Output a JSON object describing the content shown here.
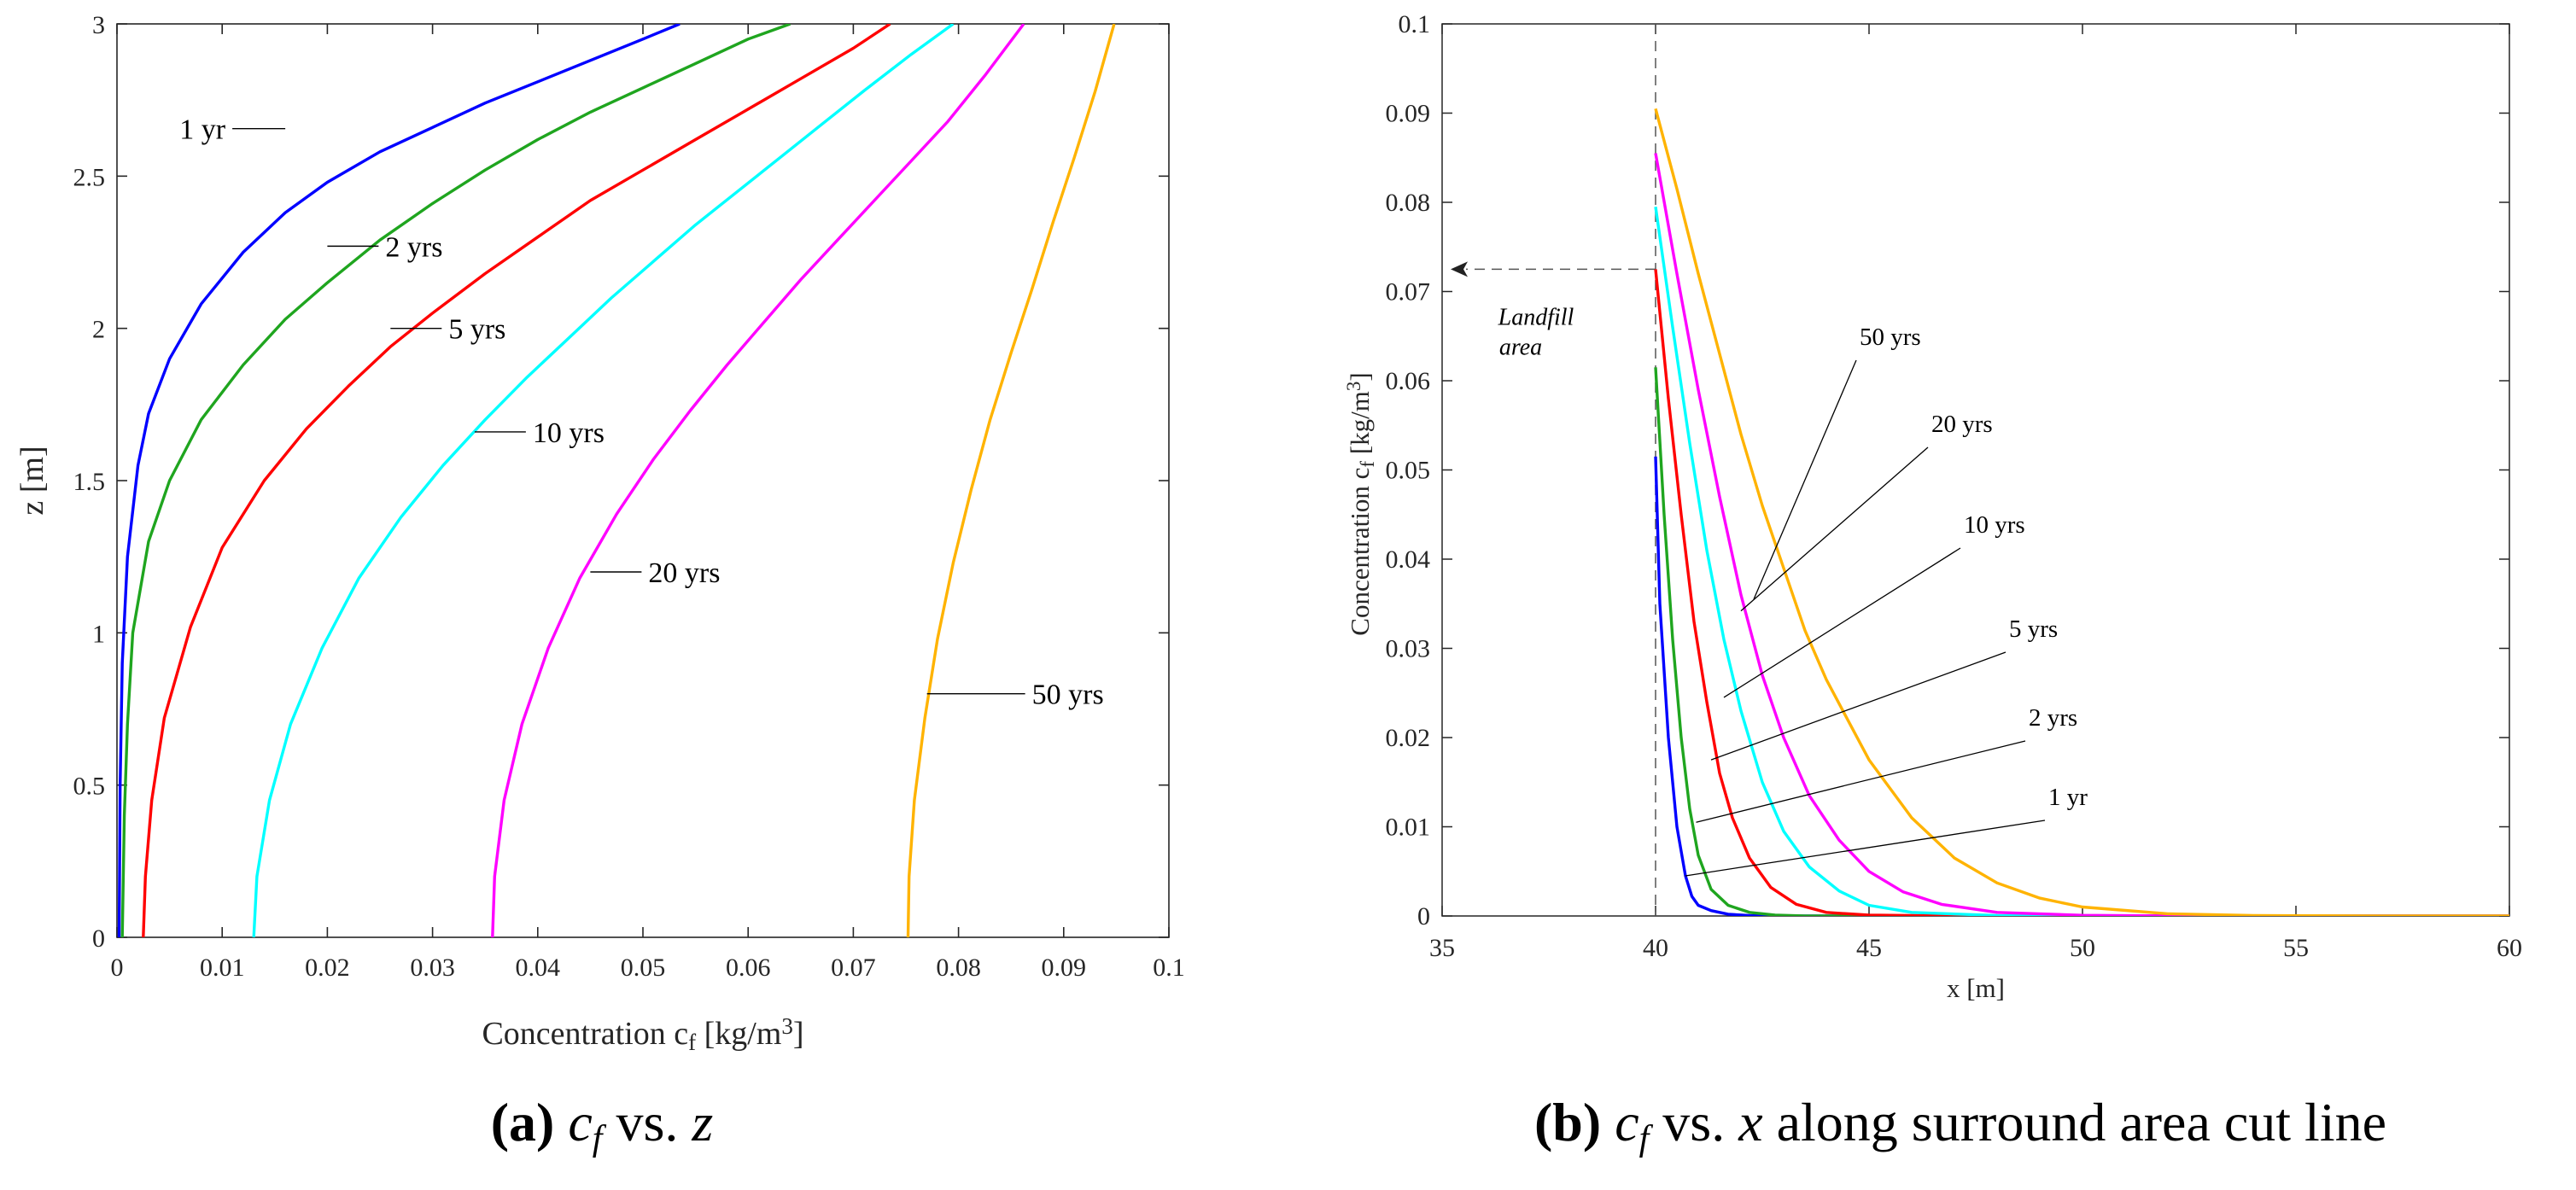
{
  "colors": {
    "1 yr": "#0000ff",
    "2 yrs": "#1fa51f",
    "5 yrs": "#ff0000",
    "10 yrs": "#00ffff",
    "20 yrs": "#ff00ff",
    "50 yrs": "#ffb300"
  },
  "chart_data": [
    {
      "type": "line",
      "panel": "a",
      "caption": {
        "label": "(a)",
        "math1": "c",
        "math1_sub": "f",
        "text": " vs. ",
        "math2": "z"
      },
      "xlabel": "Concentration c",
      "xlabel_sub": "f",
      "xlabel_units": " [kg/m",
      "xlabel_sup": "3",
      "xlabel_close": "]",
      "ylabel": "z [m]",
      "xlim": [
        0,
        0.1
      ],
      "ylim": [
        0,
        3
      ],
      "xticks": [
        0,
        0.01,
        0.02,
        0.03,
        0.04,
        0.05,
        0.06,
        0.07,
        0.08,
        0.09,
        0.1
      ],
      "xtick_labels": [
        "0",
        "0.01",
        "0.02",
        "0.03",
        "0.04",
        "0.05",
        "0.06",
        "0.07",
        "0.08",
        "0.09",
        "0.1"
      ],
      "yticks": [
        0,
        0.5,
        1,
        1.5,
        2,
        2.5,
        3
      ],
      "ytick_labels": [
        "0",
        "0.5",
        "1",
        "1.5",
        "2",
        "2.5",
        "3"
      ],
      "series": [
        {
          "name": "1 yr",
          "label": "1 yr",
          "x": [
            0.0002,
            0.0003,
            0.0005,
            0.001,
            0.002,
            0.003,
            0.005,
            0.008,
            0.012,
            0.016,
            0.02,
            0.025,
            0.03,
            0.035,
            0.04,
            0.045,
            0.05,
            0.0535
          ],
          "z": [
            0,
            0.5,
            0.9,
            1.25,
            1.55,
            1.72,
            1.9,
            2.08,
            2.25,
            2.38,
            2.48,
            2.58,
            2.66,
            2.74,
            2.81,
            2.88,
            2.95,
            3.0
          ]
        },
        {
          "name": "2 yrs",
          "label": "2 yrs",
          "x": [
            0.0005,
            0.0007,
            0.001,
            0.0015,
            0.003,
            0.005,
            0.008,
            0.012,
            0.016,
            0.02,
            0.025,
            0.03,
            0.035,
            0.04,
            0.045,
            0.05,
            0.055,
            0.06,
            0.064
          ],
          "z": [
            0,
            0.4,
            0.7,
            1.0,
            1.3,
            1.5,
            1.7,
            1.88,
            2.03,
            2.15,
            2.29,
            2.41,
            2.52,
            2.62,
            2.71,
            2.79,
            2.87,
            2.95,
            3.0
          ]
        },
        {
          "name": "5 yrs",
          "label": "5 yrs",
          "x": [
            0.0025,
            0.0027,
            0.0033,
            0.0045,
            0.007,
            0.01,
            0.014,
            0.018,
            0.022,
            0.026,
            0.03,
            0.035,
            0.04,
            0.045,
            0.05,
            0.055,
            0.06,
            0.065,
            0.07,
            0.0735
          ],
          "z": [
            0,
            0.2,
            0.45,
            0.72,
            1.02,
            1.28,
            1.5,
            1.67,
            1.81,
            1.94,
            2.05,
            2.18,
            2.3,
            2.42,
            2.52,
            2.62,
            2.72,
            2.82,
            2.92,
            3.0
          ]
        },
        {
          "name": "10 yrs",
          "label": "10 yrs",
          "x": [
            0.013,
            0.0133,
            0.0145,
            0.0165,
            0.0195,
            0.023,
            0.027,
            0.031,
            0.035,
            0.039,
            0.043,
            0.047,
            0.051,
            0.055,
            0.059,
            0.063,
            0.067,
            0.071,
            0.0755,
            0.0795
          ],
          "z": [
            0,
            0.2,
            0.45,
            0.7,
            0.95,
            1.18,
            1.38,
            1.55,
            1.7,
            1.84,
            1.97,
            2.1,
            2.22,
            2.34,
            2.45,
            2.56,
            2.67,
            2.78,
            2.9,
            3.0
          ]
        },
        {
          "name": "20 yrs",
          "label": "20 yrs",
          "x": [
            0.0357,
            0.0359,
            0.0368,
            0.0385,
            0.041,
            0.044,
            0.0475,
            0.051,
            0.0545,
            0.058,
            0.0615,
            0.065,
            0.0685,
            0.072,
            0.0755,
            0.079,
            0.0825,
            0.0862
          ],
          "z": [
            0,
            0.2,
            0.45,
            0.7,
            0.95,
            1.18,
            1.39,
            1.57,
            1.73,
            1.88,
            2.02,
            2.16,
            2.29,
            2.42,
            2.55,
            2.68,
            2.83,
            3.0
          ]
        },
        {
          "name": "50 yrs",
          "label": "50 yrs",
          "x": [
            0.0752,
            0.0753,
            0.0758,
            0.0768,
            0.078,
            0.0795,
            0.0812,
            0.083,
            0.085,
            0.087,
            0.089,
            0.091,
            0.093,
            0.0948
          ],
          "z": [
            0,
            0.2,
            0.45,
            0.72,
            0.98,
            1.23,
            1.47,
            1.7,
            1.92,
            2.13,
            2.35,
            2.56,
            2.78,
            3.0
          ]
        }
      ],
      "annotations": [
        {
          "series": "1 yr",
          "text": "1 yr",
          "x": 0.016,
          "z": 2.6
        },
        {
          "series": "2 yrs",
          "text": "2 yrs",
          "x": 0.02,
          "z": 2.27
        },
        {
          "series": "5 yrs",
          "text": "5 yrs",
          "x": 0.026,
          "z": 2.0
        },
        {
          "series": "10 yrs",
          "text": "10 yrs",
          "x": 0.034,
          "z": 1.66
        },
        {
          "series": "20 yrs",
          "text": "20 yrs",
          "x": 0.045,
          "z": 1.2
        },
        {
          "series": "50 yrs",
          "text": "50 yrs",
          "x": 0.077,
          "z": 0.8
        }
      ]
    },
    {
      "type": "line",
      "panel": "b",
      "caption": {
        "label": "(b)",
        "math1": "c",
        "math1_sub": "f",
        "text": " vs. ",
        "math2": "x",
        "tail": " along surround area cut line"
      },
      "xlabel": "x [m]",
      "ylabel": "Concentration c",
      "ylabel_sub": "f",
      "ylabel_units": " [kg/m",
      "ylabel_sup": "3",
      "ylabel_close": "]",
      "xlim": [
        35,
        60
      ],
      "ylim": [
        0,
        0.1
      ],
      "xticks": [
        35,
        40,
        45,
        50,
        55,
        60
      ],
      "xtick_labels": [
        "35",
        "40",
        "45",
        "50",
        "55",
        "60"
      ],
      "yticks": [
        0,
        0.01,
        0.02,
        0.03,
        0.04,
        0.05,
        0.06,
        0.07,
        0.08,
        0.09,
        0.1
      ],
      "ytick_labels": [
        "0",
        "0.01",
        "0.02",
        "0.03",
        "0.04",
        "0.05",
        "0.06",
        "0.07",
        "0.08",
        "0.09",
        "0.1"
      ],
      "boundary_x": 40,
      "landfill_arrow_y": 0.0725,
      "landfill_label": [
        "Landfill",
        "area"
      ],
      "series": [
        {
          "name": "1 yr",
          "label": "1 yr",
          "x": [
            40,
            40.1,
            40.3,
            40.5,
            40.7,
            40.85,
            41.0,
            41.3,
            41.7,
            42.2,
            43,
            45,
            50,
            55,
            60
          ],
          "y": [
            0.0515,
            0.035,
            0.02,
            0.01,
            0.0045,
            0.0022,
            0.0012,
            0.0006,
            0.0002,
            5e-05,
            0,
            0,
            0,
            0,
            0
          ]
        },
        {
          "name": "2 yrs",
          "label": "2 yrs",
          "x": [
            40,
            40.2,
            40.4,
            40.6,
            40.8,
            41.0,
            41.3,
            41.7,
            42.2,
            42.8,
            43.5,
            45,
            50,
            55,
            60
          ],
          "y": [
            0.0615,
            0.045,
            0.031,
            0.02,
            0.012,
            0.0068,
            0.003,
            0.0012,
            0.0004,
            0.0001,
            0,
            0,
            0,
            0,
            0
          ]
        },
        {
          "name": "5 yrs",
          "label": "5 yrs",
          "x": [
            40,
            40.3,
            40.6,
            40.9,
            41.2,
            41.5,
            41.8,
            42.2,
            42.7,
            43.3,
            44,
            45,
            47,
            50,
            55,
            60
          ],
          "y": [
            0.0725,
            0.058,
            0.045,
            0.033,
            0.024,
            0.016,
            0.011,
            0.0065,
            0.0032,
            0.0013,
            0.0004,
            0.0001,
            0,
            0,
            0,
            0
          ]
        },
        {
          "name": "10 yrs",
          "label": "10 yrs",
          "x": [
            40,
            40.4,
            40.8,
            41.2,
            41.6,
            42.0,
            42.5,
            43.0,
            43.6,
            44.3,
            45,
            46,
            48,
            50,
            55,
            60
          ],
          "y": [
            0.0795,
            0.066,
            0.053,
            0.041,
            0.031,
            0.023,
            0.015,
            0.0095,
            0.0055,
            0.0028,
            0.0012,
            0.0004,
            5e-05,
            0,
            0,
            0
          ]
        },
        {
          "name": "20 yrs",
          "label": "20 yrs",
          "x": [
            40,
            40.5,
            41.0,
            41.5,
            42.0,
            42.5,
            43.0,
            43.6,
            44.3,
            45.0,
            45.8,
            46.7,
            48,
            50,
            52,
            55,
            60
          ],
          "y": [
            0.0855,
            0.072,
            0.059,
            0.047,
            0.036,
            0.027,
            0.02,
            0.0135,
            0.0085,
            0.005,
            0.0027,
            0.0013,
            0.0004,
            8e-05,
            0,
            0,
            0
          ]
        },
        {
          "name": "50 yrs",
          "label": "50 yrs",
          "x": [
            40,
            40.5,
            41,
            41.5,
            42,
            42.5,
            43,
            43.5,
            44,
            45,
            46,
            47,
            48,
            49,
            50,
            52,
            54,
            57,
            60
          ],
          "y": [
            0.0905,
            0.0815,
            0.072,
            0.063,
            0.054,
            0.046,
            0.039,
            0.032,
            0.0265,
            0.0175,
            0.011,
            0.0065,
            0.0037,
            0.002,
            0.001,
            0.00025,
            5e-05,
            0,
            0
          ]
        }
      ],
      "annotations": [
        {
          "series": "50 yrs",
          "text": "50 yrs",
          "x": 42.3,
          "y": 0.0355
        },
        {
          "series": "20 yrs",
          "text": "20 yrs",
          "x": 42.0,
          "y": 0.0342
        },
        {
          "series": "10 yrs",
          "text": "10 yrs",
          "x": 41.6,
          "y": 0.0245
        },
        {
          "series": "5 yrs",
          "text": "5 yrs",
          "x": 41.3,
          "y": 0.0175
        },
        {
          "series": "2 yrs",
          "text": "2 yrs",
          "x": 40.95,
          "y": 0.0105
        },
        {
          "series": "1 yr",
          "text": "1 yr",
          "x": 40.7,
          "y": 0.0045
        }
      ]
    }
  ]
}
